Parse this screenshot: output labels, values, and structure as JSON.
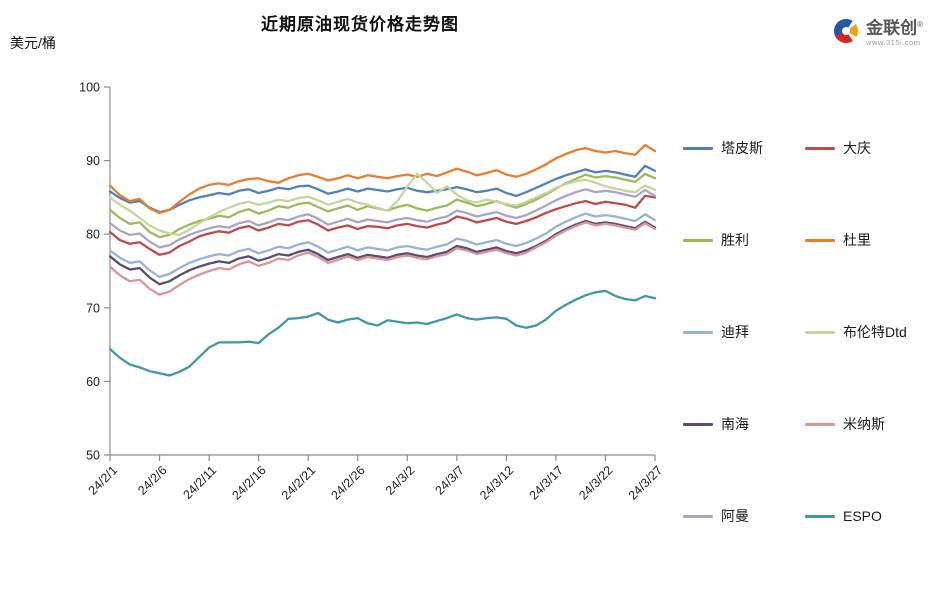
{
  "logo": {
    "name": "金联创",
    "reg_mark": "®",
    "url_text": "www.315i.com"
  },
  "chart_data": {
    "type": "line",
    "title": "近期原油现货价格走势图",
    "ylabel": "美元/桶",
    "xlabel": "",
    "ylim": [
      50,
      100
    ],
    "y_ticks": [
      50,
      60,
      70,
      80,
      90,
      100
    ],
    "grid": false,
    "legend_position": "right",
    "n_points": 56,
    "x_tick_indices": [
      0,
      5,
      10,
      15,
      20,
      25,
      30,
      35,
      40,
      45,
      50,
      55
    ],
    "x_tick_labels": [
      "24/2/1",
      "24/2/6",
      "24/2/11",
      "24/2/16",
      "24/2/21",
      "24/2/26",
      "24/3/2",
      "24/3/7",
      "24/3/12",
      "24/3/17",
      "24/3/22",
      "24/3/27"
    ],
    "series": [
      {
        "name": "塔皮斯",
        "color": "#4F81BD",
        "values": [
          85.8,
          84.9,
          84.3,
          84.5,
          83.6,
          83.0,
          83.3,
          84.0,
          84.6,
          85.0,
          85.3,
          85.6,
          85.4,
          85.9,
          86.1,
          85.6,
          85.9,
          86.3,
          86.1,
          86.5,
          86.6,
          86.1,
          85.5,
          85.8,
          86.2,
          85.8,
          86.2,
          86.0,
          85.8,
          86.1,
          86.3,
          85.9,
          85.7,
          85.9,
          86.1,
          86.4,
          86.1,
          85.7,
          85.9,
          86.2,
          85.6,
          85.2,
          85.7,
          86.3,
          86.9,
          87.5,
          88.0,
          88.4,
          88.8,
          88.4,
          88.6,
          88.4,
          88.1,
          87.8,
          89.3,
          88.6
        ]
      },
      {
        "name": "大庆",
        "color": "#BE4B48",
        "values": [
          80.3,
          79.2,
          78.7,
          78.9,
          78.0,
          77.2,
          77.5,
          78.4,
          79.0,
          79.7,
          80.1,
          80.4,
          80.2,
          80.8,
          81.1,
          80.5,
          80.9,
          81.4,
          81.2,
          81.7,
          81.9,
          81.3,
          80.5,
          80.9,
          81.2,
          80.7,
          81.1,
          81.0,
          80.8,
          81.2,
          81.4,
          81.1,
          80.9,
          81.3,
          81.6,
          82.4,
          82.1,
          81.6,
          81.9,
          82.2,
          81.7,
          81.4,
          81.8,
          82.3,
          82.9,
          83.4,
          83.8,
          84.2,
          84.5,
          84.1,
          84.4,
          84.2,
          84.0,
          83.6,
          85.2,
          85.0
        ]
      },
      {
        "name": "胜利",
        "color": "#9BBB59",
        "values": [
          83.3,
          82.2,
          81.4,
          81.6,
          80.3,
          79.6,
          79.9,
          80.7,
          81.3,
          81.8,
          82.1,
          82.5,
          82.3,
          83.0,
          83.4,
          82.8,
          83.2,
          83.8,
          83.6,
          84.1,
          84.3,
          83.7,
          83.1,
          83.5,
          83.9,
          83.3,
          83.8,
          83.5,
          83.2,
          83.7,
          84.0,
          83.5,
          83.2,
          83.6,
          83.9,
          84.7,
          84.3,
          83.8,
          84.1,
          84.5,
          84.0,
          83.6,
          84.1,
          84.7,
          85.4,
          86.2,
          86.9,
          87.5,
          88.1,
          87.7,
          87.9,
          87.7,
          87.4,
          87.1,
          88.2,
          87.6
        ]
      },
      {
        "name": "杜里",
        "color": "#E87D2C",
        "values": [
          86.6,
          85.3,
          84.5,
          84.8,
          83.5,
          82.9,
          83.3,
          84.4,
          85.4,
          86.2,
          86.7,
          86.9,
          86.7,
          87.2,
          87.5,
          87.6,
          87.2,
          87.0,
          87.6,
          88.0,
          88.2,
          87.8,
          87.3,
          87.6,
          88.0,
          87.6,
          88.0,
          87.8,
          87.6,
          87.9,
          88.1,
          87.8,
          88.2,
          87.9,
          88.4,
          88.9,
          88.5,
          88.0,
          88.3,
          88.7,
          88.1,
          87.8,
          88.2,
          88.8,
          89.5,
          90.3,
          90.9,
          91.4,
          91.7,
          91.3,
          91.1,
          91.3,
          91.0,
          90.8,
          92.1,
          91.3
        ]
      },
      {
        "name": "迪拜",
        "color": "#95B3D7",
        "values": [
          77.8,
          76.8,
          76.1,
          76.3,
          75.1,
          74.2,
          74.6,
          75.4,
          76.1,
          76.6,
          77.0,
          77.3,
          77.1,
          77.7,
          78.0,
          77.4,
          77.8,
          78.3,
          78.1,
          78.6,
          78.9,
          78.3,
          77.5,
          77.9,
          78.3,
          77.8,
          78.2,
          78.0,
          77.8,
          78.2,
          78.4,
          78.1,
          77.9,
          78.3,
          78.6,
          79.4,
          79.1,
          78.6,
          78.9,
          79.2,
          78.7,
          78.4,
          78.8,
          79.4,
          80.1,
          81.0,
          81.7,
          82.3,
          82.8,
          82.4,
          82.6,
          82.4,
          82.1,
          81.8,
          82.7,
          81.9
        ]
      },
      {
        "name": "布伦特Dtd",
        "color": "#C3D69B",
        "values": [
          85.0,
          84.0,
          83.2,
          82.2,
          81.2,
          80.5,
          80.1,
          79.9,
          80.6,
          81.5,
          82.3,
          83.0,
          83.6,
          84.1,
          84.4,
          84.0,
          84.3,
          84.7,
          84.5,
          84.9,
          85.1,
          84.6,
          84.0,
          84.4,
          84.8,
          84.3,
          84.0,
          83.6,
          83.2,
          84.5,
          86.5,
          88.2,
          87.0,
          85.6,
          86.5,
          85.4,
          84.6,
          84.3,
          84.7,
          84.4,
          84.1,
          83.9,
          84.4,
          85.0,
          85.6,
          86.3,
          86.8,
          87.2,
          87.4,
          87.0,
          86.5,
          86.2,
          85.9,
          85.7,
          86.6,
          86.0
        ]
      },
      {
        "name": "南海",
        "color": "#5C4A78",
        "values": [
          77.0,
          75.9,
          75.2,
          75.4,
          74.1,
          73.2,
          73.6,
          74.4,
          75.1,
          75.6,
          76.0,
          76.3,
          76.1,
          76.7,
          77.0,
          76.4,
          76.8,
          77.3,
          77.1,
          77.6,
          77.9,
          77.3,
          76.5,
          76.9,
          77.3,
          76.8,
          77.2,
          77.0,
          76.8,
          77.2,
          77.4,
          77.1,
          76.9,
          77.3,
          77.6,
          78.4,
          78.1,
          77.6,
          77.9,
          78.2,
          77.7,
          77.4,
          77.8,
          78.4,
          79.1,
          80.0,
          80.7,
          81.3,
          81.8,
          81.4,
          81.6,
          81.4,
          81.1,
          80.8,
          81.7,
          80.9
        ]
      },
      {
        "name": "米纳斯",
        "color": "#D99694",
        "values": [
          75.6,
          74.4,
          73.6,
          73.8,
          72.6,
          71.8,
          72.2,
          73.1,
          73.9,
          74.5,
          75.0,
          75.4,
          75.2,
          75.9,
          76.3,
          75.7,
          76.1,
          76.7,
          76.5,
          77.1,
          77.5,
          76.9,
          76.1,
          76.5,
          77.0,
          76.5,
          76.9,
          76.7,
          76.5,
          76.9,
          77.1,
          76.8,
          76.6,
          77.0,
          77.3,
          78.1,
          77.8,
          77.3,
          77.6,
          77.9,
          77.4,
          77.1,
          77.5,
          78.2,
          78.9,
          79.8,
          80.5,
          81.1,
          81.6,
          81.2,
          81.4,
          81.2,
          80.9,
          80.6,
          81.5,
          80.7
        ]
      },
      {
        "name": "阿曼",
        "color": "#ABA3C5",
        "values": [
          81.5,
          80.5,
          79.9,
          80.1,
          79.0,
          78.2,
          78.5,
          79.3,
          79.9,
          80.4,
          80.8,
          81.1,
          80.9,
          81.5,
          81.8,
          81.2,
          81.6,
          82.1,
          81.9,
          82.4,
          82.7,
          82.1,
          81.3,
          81.7,
          82.1,
          81.6,
          82.0,
          81.8,
          81.6,
          82.0,
          82.2,
          81.9,
          81.7,
          82.1,
          82.4,
          83.2,
          82.9,
          82.4,
          82.7,
          83.0,
          82.5,
          82.2,
          82.6,
          83.2,
          83.9,
          84.6,
          85.2,
          85.7,
          86.1,
          85.7,
          85.9,
          85.7,
          85.4,
          85.1,
          86.0,
          85.2
        ]
      },
      {
        "name": "ESPO",
        "color": "#3D97AD",
        "values": [
          64.4,
          63.2,
          62.3,
          61.9,
          61.4,
          61.1,
          60.8,
          61.3,
          62.0,
          63.3,
          64.6,
          65.3,
          65.3,
          65.3,
          65.4,
          65.2,
          66.4,
          67.3,
          68.5,
          68.6,
          68.8,
          69.3,
          68.4,
          68.0,
          68.4,
          68.6,
          67.9,
          67.6,
          68.3,
          68.1,
          67.9,
          68.0,
          67.8,
          68.2,
          68.6,
          69.1,
          68.6,
          68.4,
          68.6,
          68.7,
          68.5,
          67.6,
          67.3,
          67.6,
          68.4,
          69.6,
          70.4,
          71.1,
          71.7,
          72.1,
          72.3,
          71.6,
          71.2,
          71.0,
          71.6,
          71.3
        ]
      }
    ]
  }
}
